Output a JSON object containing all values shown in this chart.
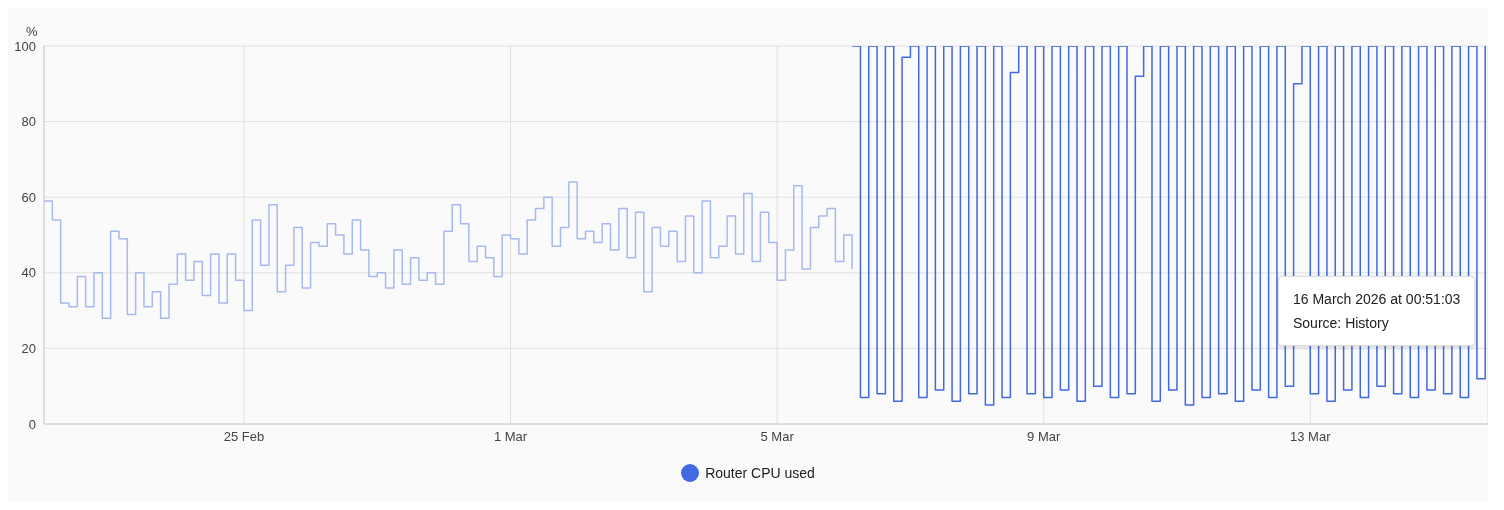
{
  "chart_data": {
    "type": "step",
    "ylabel": "%",
    "ylim": [
      0,
      100
    ],
    "yticks": [
      0,
      20,
      40,
      60,
      80,
      100
    ],
    "xlim": [
      "2026-02-22T00:00",
      "2026-03-15T16:00"
    ],
    "xticks": [
      {
        "value": "2026-02-25",
        "label": "25 Feb"
      },
      {
        "value": "2026-03-01",
        "label": "1 Mar"
      },
      {
        "value": "2026-03-05",
        "label": "5 Mar"
      },
      {
        "value": "2026-03-09",
        "label": "9 Mar"
      },
      {
        "value": "2026-03-13",
        "label": "13 Mar"
      }
    ],
    "grid": true,
    "legend": "bottom",
    "annotations": [
      "16 March 2026 at 00:51:03",
      "Source: History"
    ],
    "series": [
      {
        "color": "#a7b9ef",
        "x": [
          "2026-02-22T00:00",
          "2026-02-22T03:00",
          "2026-02-22T06:00",
          "2026-02-22T09:00",
          "2026-02-22T12:00",
          "2026-02-22T15:00",
          "2026-02-22T18:00",
          "2026-02-22T21:00",
          "2026-02-23T00:00",
          "2026-02-23T03:00",
          "2026-02-23T06:00",
          "2026-02-23T09:00",
          "2026-02-23T12:00",
          "2026-02-23T15:00",
          "2026-02-23T18:00",
          "2026-02-23T21:00",
          "2026-02-24T00:00",
          "2026-02-24T03:00",
          "2026-02-24T06:00",
          "2026-02-24T09:00",
          "2026-02-24T12:00",
          "2026-02-24T15:00",
          "2026-02-24T18:00",
          "2026-02-24T21:00",
          "2026-02-25T00:00",
          "2026-02-25T03:00",
          "2026-02-25T06:00",
          "2026-02-25T09:00",
          "2026-02-25T12:00",
          "2026-02-25T15:00",
          "2026-02-25T18:00",
          "2026-02-25T21:00",
          "2026-02-26T00:00",
          "2026-02-26T03:00",
          "2026-02-26T06:00",
          "2026-02-26T09:00",
          "2026-02-26T12:00",
          "2026-02-26T15:00",
          "2026-02-26T18:00",
          "2026-02-26T21:00",
          "2026-02-27T00:00",
          "2026-02-27T03:00",
          "2026-02-27T06:00",
          "2026-02-27T09:00",
          "2026-02-27T12:00",
          "2026-02-27T15:00",
          "2026-02-27T18:00",
          "2026-02-27T21:00",
          "2026-02-28T00:00",
          "2026-02-28T03:00",
          "2026-02-28T06:00",
          "2026-02-28T09:00",
          "2026-02-28T12:00",
          "2026-02-28T15:00",
          "2026-02-28T18:00",
          "2026-02-28T21:00",
          "2026-03-01T00:00",
          "2026-03-01T03:00",
          "2026-03-01T06:00",
          "2026-03-01T09:00",
          "2026-03-01T12:00",
          "2026-03-01T15:00",
          "2026-03-01T18:00",
          "2026-03-01T21:00",
          "2026-03-02T00:00",
          "2026-03-02T03:00",
          "2026-03-02T06:00",
          "2026-03-02T09:00",
          "2026-03-02T12:00",
          "2026-03-02T15:00",
          "2026-03-02T18:00",
          "2026-03-02T21:00",
          "2026-03-03T00:00",
          "2026-03-03T03:00",
          "2026-03-03T06:00",
          "2026-03-03T09:00",
          "2026-03-03T12:00",
          "2026-03-03T15:00",
          "2026-03-03T18:00",
          "2026-03-03T21:00",
          "2026-03-04T00:00",
          "2026-03-04T03:00",
          "2026-03-04T06:00",
          "2026-03-04T09:00",
          "2026-03-04T12:00",
          "2026-03-04T15:00",
          "2026-03-04T18:00",
          "2026-03-04T21:00",
          "2026-03-05T00:00",
          "2026-03-05T03:00",
          "2026-03-05T06:00",
          "2026-03-05T09:00",
          "2026-03-05T12:00",
          "2026-03-05T15:00",
          "2026-03-05T18:00",
          "2026-03-05T21:00",
          "2026-03-06T00:00",
          "2026-03-06T03:00"
        ],
        "values": [
          59,
          54,
          32,
          31,
          39,
          31,
          40,
          28,
          51,
          49,
          29,
          40,
          31,
          35,
          28,
          37,
          45,
          38,
          43,
          34,
          45,
          32,
          45,
          38,
          30,
          54,
          42,
          58,
          35,
          42,
          52,
          36,
          48,
          47,
          53,
          50,
          45,
          54,
          46,
          39,
          40,
          36,
          46,
          37,
          44,
          38,
          40,
          37,
          51,
          58,
          53,
          43,
          47,
          44,
          39,
          50,
          49,
          45,
          54,
          57,
          60,
          47,
          52,
          64,
          49,
          51,
          48,
          53,
          46,
          57,
          44,
          56,
          35,
          52,
          47,
          51,
          43,
          55,
          40,
          59,
          44,
          47,
          55,
          45,
          61,
          43,
          56,
          48,
          38,
          46,
          63,
          41,
          52,
          55,
          57,
          43,
          50,
          41
        ]
      },
      {
        "name": "Router CPU used",
        "color": "#4169e1",
        "x": [
          "2026-03-06T03:00",
          "2026-03-06T06:00",
          "2026-03-06T09:00",
          "2026-03-06T12:00",
          "2026-03-06T15:00",
          "2026-03-06T18:00",
          "2026-03-06T21:00",
          "2026-03-07T00:00",
          "2026-03-07T03:00",
          "2026-03-07T06:00",
          "2026-03-07T09:00",
          "2026-03-07T12:00",
          "2026-03-07T15:00",
          "2026-03-07T18:00",
          "2026-03-07T21:00",
          "2026-03-08T00:00",
          "2026-03-08T03:00",
          "2026-03-08T06:00",
          "2026-03-08T09:00",
          "2026-03-08T12:00",
          "2026-03-08T15:00",
          "2026-03-08T18:00",
          "2026-03-08T21:00",
          "2026-03-09T00:00",
          "2026-03-09T03:00",
          "2026-03-09T06:00",
          "2026-03-09T09:00",
          "2026-03-09T12:00",
          "2026-03-09T15:00",
          "2026-03-09T18:00",
          "2026-03-09T21:00",
          "2026-03-10T00:00",
          "2026-03-10T03:00",
          "2026-03-10T06:00",
          "2026-03-10T09:00",
          "2026-03-10T12:00",
          "2026-03-10T15:00",
          "2026-03-10T18:00",
          "2026-03-10T21:00",
          "2026-03-11T00:00",
          "2026-03-11T03:00",
          "2026-03-11T06:00",
          "2026-03-11T09:00",
          "2026-03-11T12:00",
          "2026-03-11T15:00",
          "2026-03-11T18:00",
          "2026-03-11T21:00",
          "2026-03-12T00:00",
          "2026-03-12T03:00",
          "2026-03-12T06:00",
          "2026-03-12T09:00",
          "2026-03-12T12:00",
          "2026-03-12T15:00",
          "2026-03-12T18:00",
          "2026-03-12T21:00",
          "2026-03-13T00:00",
          "2026-03-13T03:00",
          "2026-03-13T06:00",
          "2026-03-13T09:00",
          "2026-03-13T12:00",
          "2026-03-13T15:00",
          "2026-03-13T18:00",
          "2026-03-13T21:00",
          "2026-03-14T00:00",
          "2026-03-14T03:00",
          "2026-03-14T06:00",
          "2026-03-14T09:00",
          "2026-03-14T12:00",
          "2026-03-14T15:00",
          "2026-03-14T18:00",
          "2026-03-14T21:00",
          "2026-03-15T00:00",
          "2026-03-15T03:00",
          "2026-03-15T06:00",
          "2026-03-15T09:00",
          "2026-03-15T12:00",
          "2026-03-15T15:00"
        ],
        "values": [
          100,
          7,
          100,
          8,
          100,
          6,
          97,
          100,
          7,
          100,
          9,
          100,
          6,
          100,
          8,
          100,
          5,
          100,
          7,
          93,
          100,
          8,
          100,
          7,
          100,
          9,
          100,
          6,
          100,
          10,
          100,
          7,
          100,
          8,
          92,
          100,
          6,
          100,
          9,
          100,
          5,
          100,
          7,
          100,
          8,
          100,
          6,
          100,
          9,
          100,
          7,
          100,
          10,
          90,
          100,
          8,
          100,
          6,
          100,
          9,
          100,
          7,
          100,
          10,
          100,
          8,
          100,
          7,
          100,
          9,
          100,
          8,
          100,
          7,
          100,
          12,
          100
        ]
      }
    ]
  }
}
